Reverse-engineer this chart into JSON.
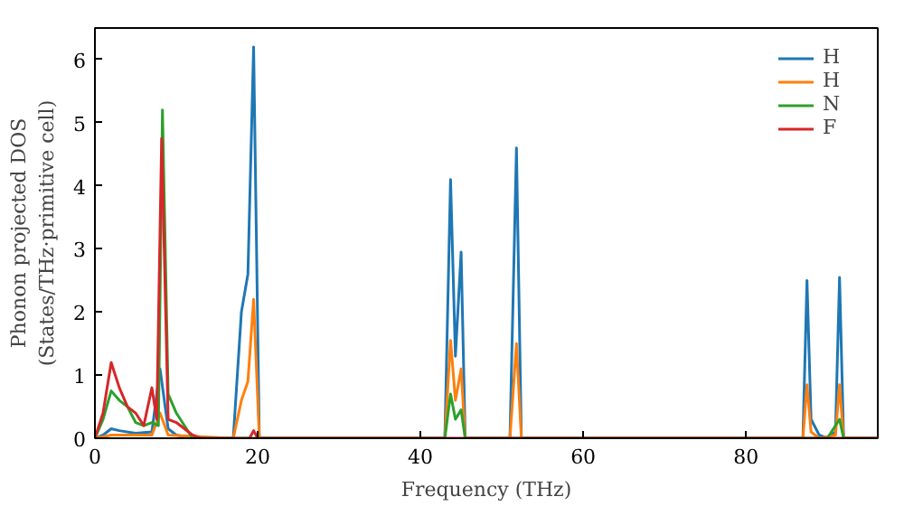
{
  "chart_data": {
    "type": "line",
    "xlabel": "Frequency (THz)",
    "ylabel": "Phonon projected DOS\n(States/THz·primitive cell)",
    "xlim": [
      0,
      96.2
    ],
    "ylim": [
      0,
      6.5
    ],
    "xticks": [
      0,
      20,
      40,
      60,
      80
    ],
    "yticks": [
      0,
      1,
      2,
      3,
      4,
      5,
      6
    ],
    "grid": false,
    "legend": "top right",
    "series": [
      {
        "name": "H",
        "color": "#1f77b4",
        "x": [
          0,
          1,
          2,
          3,
          5,
          7,
          8,
          9,
          10,
          12,
          17,
          18,
          18.8,
          19.5,
          20.2,
          43,
          43.7,
          44.3,
          45,
          45.5,
          51,
          51.8,
          52.4,
          87,
          87.5,
          88,
          89,
          90,
          91,
          91.5,
          92,
          96.2
        ],
        "values": [
          0,
          0.05,
          0.15,
          0.12,
          0.08,
          0.1,
          1.1,
          0.15,
          0.05,
          0,
          0,
          2.0,
          2.6,
          6.2,
          0,
          0,
          4.1,
          1.3,
          2.95,
          0,
          0,
          4.6,
          0,
          0,
          2.5,
          0.3,
          0.05,
          0,
          0.1,
          2.55,
          0,
          0
        ]
      },
      {
        "name": "H",
        "color": "#ff7f0e",
        "x": [
          0,
          2,
          7,
          8,
          9,
          17,
          18,
          18.8,
          19.5,
          20.2,
          43,
          43.7,
          44.3,
          45,
          45.5,
          51,
          51.8,
          52.4,
          87,
          87.5,
          88,
          89,
          91,
          91.5,
          92,
          96.2
        ],
        "values": [
          0,
          0.05,
          0.05,
          0.4,
          0.05,
          0,
          0.6,
          0.9,
          2.2,
          0,
          0,
          1.55,
          0.6,
          1.1,
          0,
          0,
          1.5,
          0,
          0,
          0.85,
          0.1,
          0,
          0.05,
          0.85,
          0,
          0
        ]
      },
      {
        "name": "N",
        "color": "#2ca02c",
        "x": [
          0,
          1,
          2,
          3,
          4,
          5,
          6,
          7,
          7.8,
          8.3,
          9,
          10,
          11,
          12,
          43,
          43.7,
          44.3,
          45,
          45.5,
          90,
          91.5,
          92,
          96.2
        ],
        "values": [
          0,
          0.3,
          0.75,
          0.6,
          0.5,
          0.25,
          0.2,
          0.25,
          0.2,
          5.2,
          0.7,
          0.4,
          0.2,
          0,
          0,
          0.7,
          0.3,
          0.45,
          0,
          0,
          0.3,
          0,
          0
        ]
      },
      {
        "name": "F",
        "color": "#d62728",
        "x": [
          0,
          1,
          2,
          3,
          4,
          5,
          6,
          7,
          7.6,
          8.2,
          9,
          10,
          11,
          12,
          13,
          19,
          19.5,
          20,
          96.2
        ],
        "values": [
          0,
          0.4,
          1.2,
          0.8,
          0.5,
          0.4,
          0.2,
          0.8,
          0.3,
          4.75,
          0.3,
          0.25,
          0.15,
          0.05,
          0,
          0,
          0.12,
          0,
          0
        ]
      }
    ]
  }
}
